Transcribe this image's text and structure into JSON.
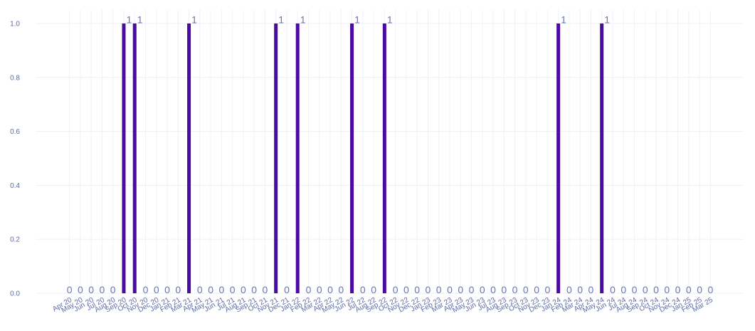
{
  "chart_data": {
    "type": "bar",
    "title": "",
    "xlabel": "",
    "ylabel": "",
    "ylim": [
      0,
      1.05
    ],
    "y_ticks": [
      "0.0",
      "0.2",
      "0.4",
      "0.6",
      "0.8",
      "1.0"
    ],
    "grid": true,
    "bar_color": "#4b0aa1",
    "categories": [
      "Apr 20",
      "May 20",
      "Jun 20",
      "Jul 20",
      "Aug 20",
      "Sep 20",
      "Oct 20",
      "Nov 20",
      "Dec 20",
      "Jan 21",
      "Feb 21",
      "Mar 21",
      "Apr 21",
      "May 21",
      "Jun 21",
      "Jul 21",
      "Aug 21",
      "Sep 21",
      "Oct 21",
      "Nov 21",
      "Dec 21",
      "Jan 22",
      "Feb 22",
      "Mar 22",
      "Apr 22",
      "May 22",
      "Jun 22",
      "Jul 22",
      "Aug 22",
      "Sep 22",
      "Oct 22",
      "Nov 22",
      "Dec 22",
      "Jan 23",
      "Feb 23",
      "Mar 23",
      "Apr 23",
      "May 23",
      "Jun 23",
      "Jul 23",
      "Aug 23",
      "Sep 23",
      "Oct 23",
      "Nov 23",
      "Dec 23",
      "Jan 24",
      "Feb 24",
      "Mar 24",
      "Apr 24",
      "May 24",
      "Jun 24",
      "Jul 24",
      "Aug 24",
      "Sep 24",
      "Oct 24",
      "Nov 24",
      "Dec 24",
      "Jan 25",
      "Feb 25",
      "Mar 25"
    ],
    "values": [
      0,
      0,
      0,
      0,
      0,
      1,
      1,
      0,
      0,
      0,
      0,
      1,
      0,
      0,
      0,
      0,
      0,
      0,
      0,
      1,
      0,
      1,
      0,
      0,
      0,
      0,
      1,
      0,
      0,
      1,
      0,
      0,
      0,
      0,
      0,
      0,
      0,
      0,
      0,
      0,
      0,
      0,
      0,
      0,
      0,
      1,
      0,
      0,
      0,
      1,
      0,
      0,
      0,
      0,
      0,
      0,
      0,
      0,
      0,
      0
    ],
    "data_labels": [
      "0",
      "0",
      "0",
      "0",
      "0",
      "1",
      "1",
      "0",
      "0",
      "0",
      "0",
      "1",
      "0",
      "0",
      "0",
      "0",
      "0",
      "0",
      "0",
      "1",
      "0",
      "1",
      "0",
      "0",
      "0",
      "0",
      "1",
      "0",
      "0",
      "1",
      "0",
      "0",
      "0",
      "0",
      "0",
      "0",
      "0",
      "0",
      "0",
      "0",
      "0",
      "0",
      "0",
      "0",
      "0",
      "1",
      "0",
      "0",
      "0",
      "1",
      "0",
      "0",
      "0",
      "0",
      "0",
      "0",
      "0",
      "0",
      "0",
      "0"
    ]
  }
}
